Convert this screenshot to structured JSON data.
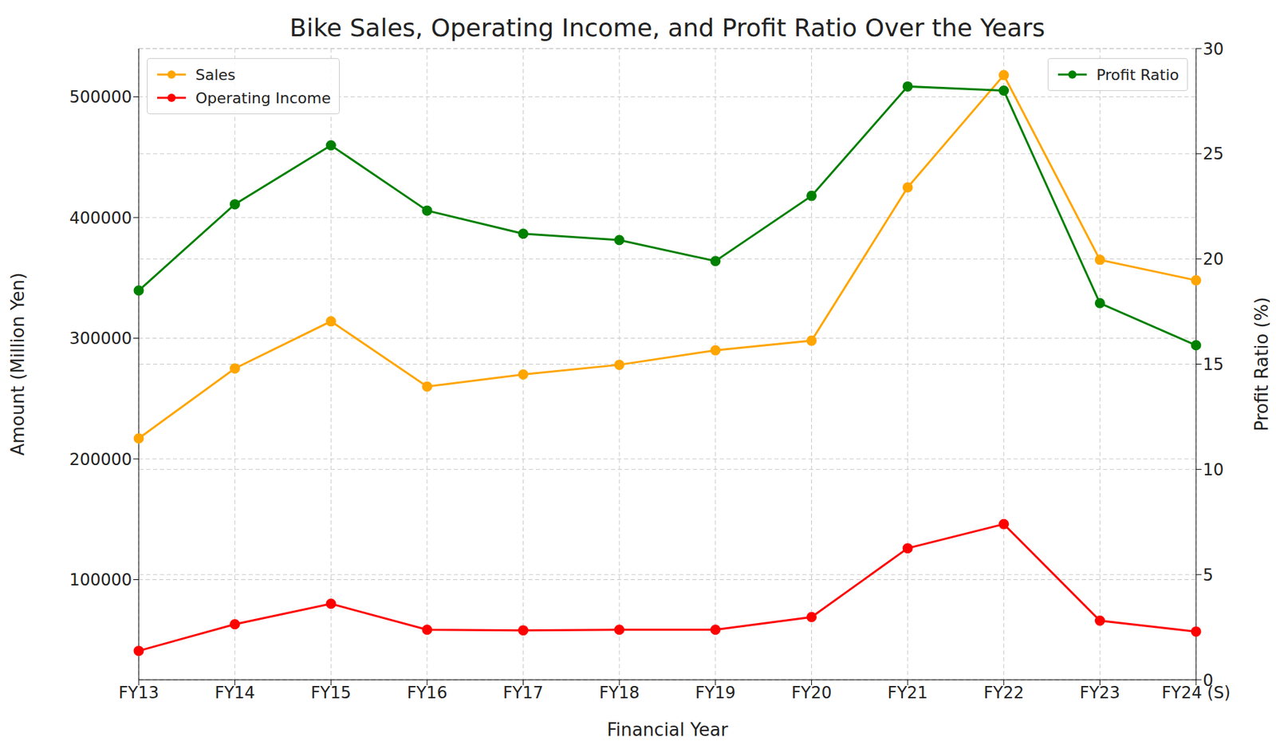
{
  "chart_data": {
    "type": "line",
    "title": "Bike Sales, Operating Income, and Profit Ratio Over the Years",
    "x_label": "Financial Year",
    "y_label": "Amount (Million Yen)",
    "y2_label": "Profit Ratio (%)",
    "categories": [
      "FY13",
      "FY14",
      "FY15",
      "FY16",
      "FY17",
      "FY18",
      "FY19",
      "FY20",
      "FY21",
      "FY22",
      "FY23",
      "FY24 (S)"
    ],
    "series": [
      {
        "name": "Sales",
        "color": "#ffa500",
        "marker": "circle",
        "values": [
          217000,
          275000,
          314000,
          260000,
          270000,
          278000,
          290000,
          298000,
          425000,
          518000,
          365000,
          348000
        ]
      },
      {
        "name": "Operating Income",
        "color": "#ff0000",
        "marker": "circle",
        "values": [
          41000,
          63000,
          80000,
          58500,
          58000,
          58500,
          58500,
          69000,
          126000,
          146000,
          66000,
          57000
        ]
      },
      {
        "name": "Profit Ratio",
        "color": "#008000",
        "marker": "circle",
        "axis": "y2",
        "values": [
          18.5,
          22.6,
          25.4,
          22.3,
          21.2,
          20.9,
          19.9,
          23.0,
          28.2,
          28.0,
          17.9,
          15.9
        ]
      }
    ],
    "ylim": [
      17000,
      540000
    ],
    "yticks": [
      100000,
      200000,
      300000,
      400000,
      500000
    ],
    "y2lim": [
      0,
      30
    ],
    "y2ticks": [
      0,
      5,
      10,
      15,
      20,
      25,
      30
    ],
    "grid": true,
    "legend": "upper left"
  }
}
